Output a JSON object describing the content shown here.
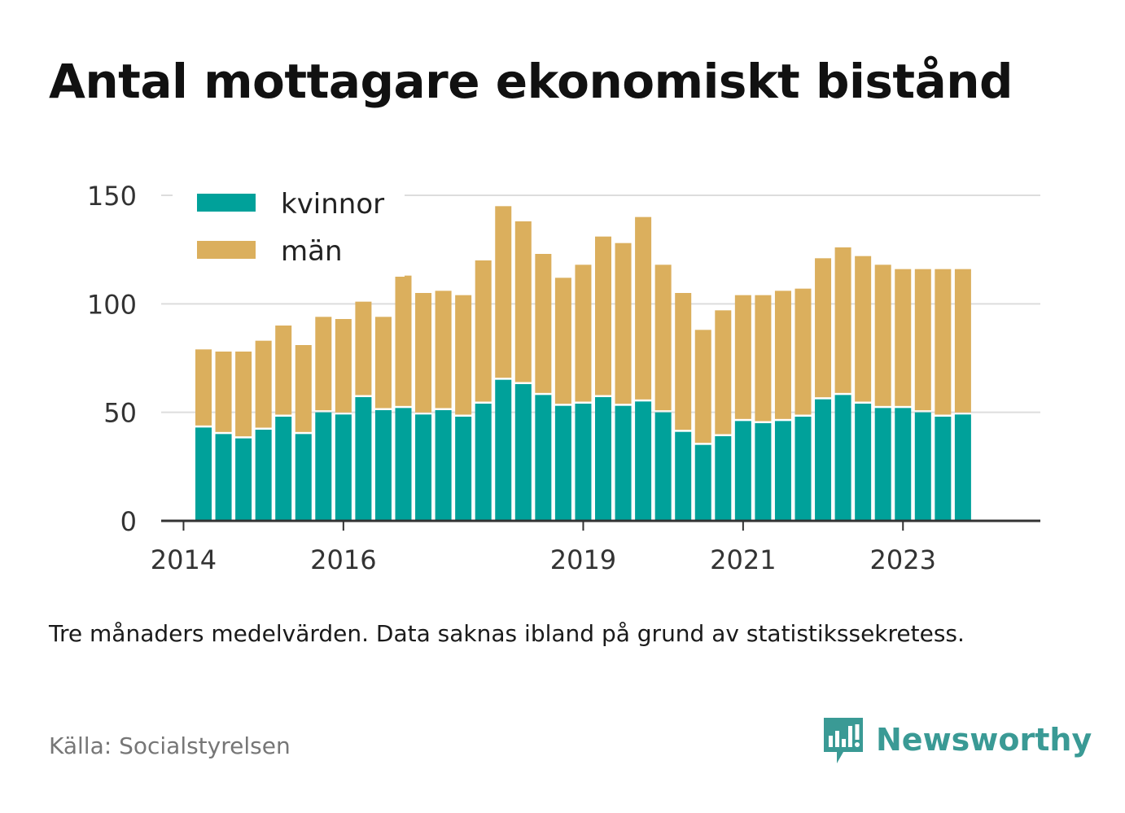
{
  "title": "Antal mottagare ekonomiskt bistånd",
  "note": "Tre månaders medelvärden. Data saknas ibland på grund av statistikssekretess.",
  "source": "Källa: Socialstyrelsen",
  "brand": {
    "name": "Newsworthy",
    "logo_icon": "chart-speech-bubble-icon"
  },
  "colors": {
    "kvinnor": "#00a19a",
    "man": "#dbaf5d",
    "grid": "#dddddd",
    "axis": "#333333",
    "brand": "#3a9a95"
  },
  "chart_data": {
    "type": "bar",
    "stacked": true,
    "x_unit": "quarter",
    "x_start": "2014-Q2",
    "xticks": [
      "2014",
      "2016",
      "2019",
      "2021",
      "2023"
    ],
    "yticks": [
      0,
      50,
      100,
      150
    ],
    "ylim": [
      0,
      150
    ],
    "grid": true,
    "legend_position": "top-left",
    "series": [
      {
        "name": "kvinnor",
        "values": [
          43,
          40,
          38,
          42,
          48,
          40,
          50,
          49,
          57,
          51,
          52,
          49,
          51,
          48,
          54,
          65,
          63,
          58,
          53,
          54,
          57,
          53,
          55,
          50,
          41,
          35,
          39,
          46,
          45,
          46,
          48,
          56,
          58,
          54,
          52,
          52,
          50,
          48,
          49
        ]
      },
      {
        "name": "män",
        "values": [
          36,
          38,
          40,
          41,
          42,
          41,
          44,
          44,
          44,
          43,
          61,
          56,
          55,
          56,
          66,
          80,
          75,
          65,
          59,
          64,
          74,
          75,
          85,
          68,
          64,
          53,
          58,
          58,
          59,
          60,
          59,
          65,
          68,
          68,
          66,
          64,
          66,
          68,
          67
        ]
      }
    ]
  }
}
